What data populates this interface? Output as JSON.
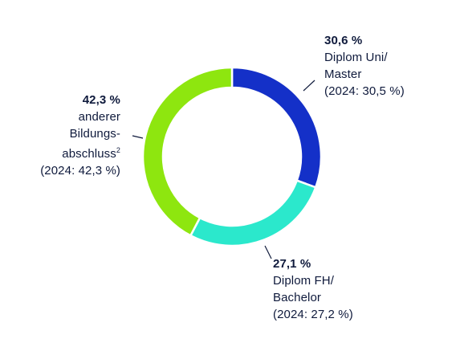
{
  "chart_data": {
    "type": "pie",
    "variant": "donut",
    "slices": [
      {
        "value": 30.6,
        "value_label": "30,6 %",
        "label_lines": [
          "Diplom Uni/",
          "Master"
        ],
        "previous": "(2024: 30,5 %)",
        "color": "#1430c8"
      },
      {
        "value": 27.1,
        "value_label": "27,1 %",
        "label_lines": [
          "Diplom FH/",
          "Bachelor"
        ],
        "previous": "(2024: 27,2 %)",
        "color": "#2be8cc"
      },
      {
        "value": 42.3,
        "value_label": "42,3 %",
        "label_lines": [
          "anderer",
          "Bildungs-",
          "abschluss"
        ],
        "footnote": "2",
        "previous": "(2024: 42,3 %)",
        "color": "#8ee60f"
      }
    ],
    "legend": "none",
    "grid": false
  }
}
